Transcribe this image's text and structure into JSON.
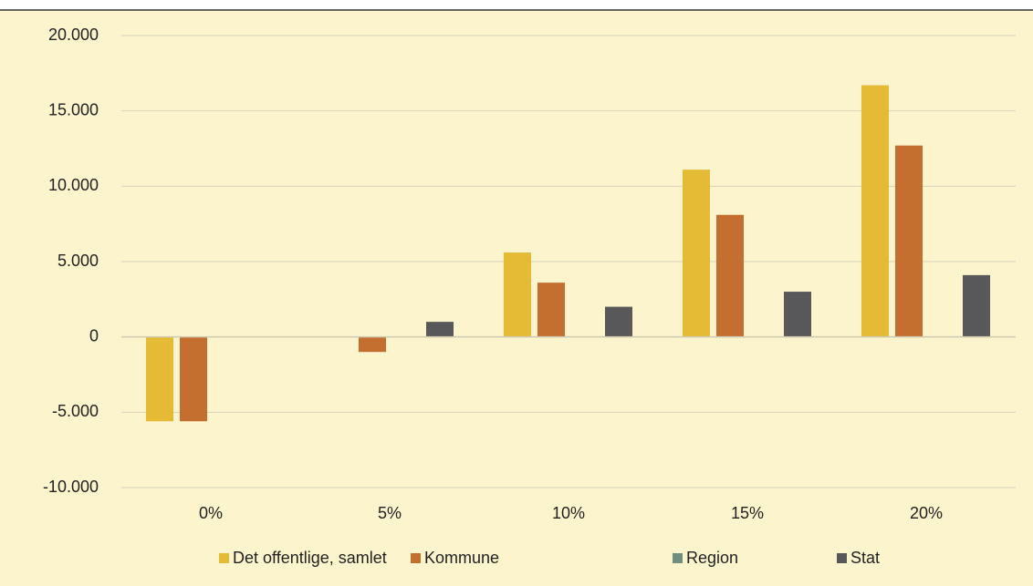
{
  "chart_data": {
    "type": "bar",
    "categories": [
      "0%",
      "5%",
      "10%",
      "15%",
      "20%"
    ],
    "series": [
      {
        "name": "Det offentlige, samlet",
        "color": "#e5ba34",
        "values": [
          -5600,
          0,
          5600,
          11100,
          16700
        ]
      },
      {
        "name": "Kommune",
        "color": "#c46e30",
        "values": [
          -5600,
          -1000,
          3600,
          8100,
          12700
        ]
      },
      {
        "name": "Region",
        "color": "#6f8e80",
        "values": [
          0,
          0,
          0,
          0,
          0
        ]
      },
      {
        "name": "Stat",
        "color": "#58585a",
        "values": [
          0,
          1000,
          2000,
          3000,
          4100
        ]
      }
    ],
    "ylim": [
      -10000,
      20000
    ],
    "yticks": [
      {
        "value": -10000,
        "label": "-10.000"
      },
      {
        "value": -5000,
        "label": "-5.000"
      },
      0,
      {
        "value": 5000,
        "label": "5.000"
      },
      {
        "value": 10000,
        "label": "10.000"
      },
      {
        "value": 15000,
        "label": "15.000"
      },
      {
        "value": 20000,
        "label": "20.000"
      }
    ],
    "grid": true,
    "legend": "bottom"
  }
}
